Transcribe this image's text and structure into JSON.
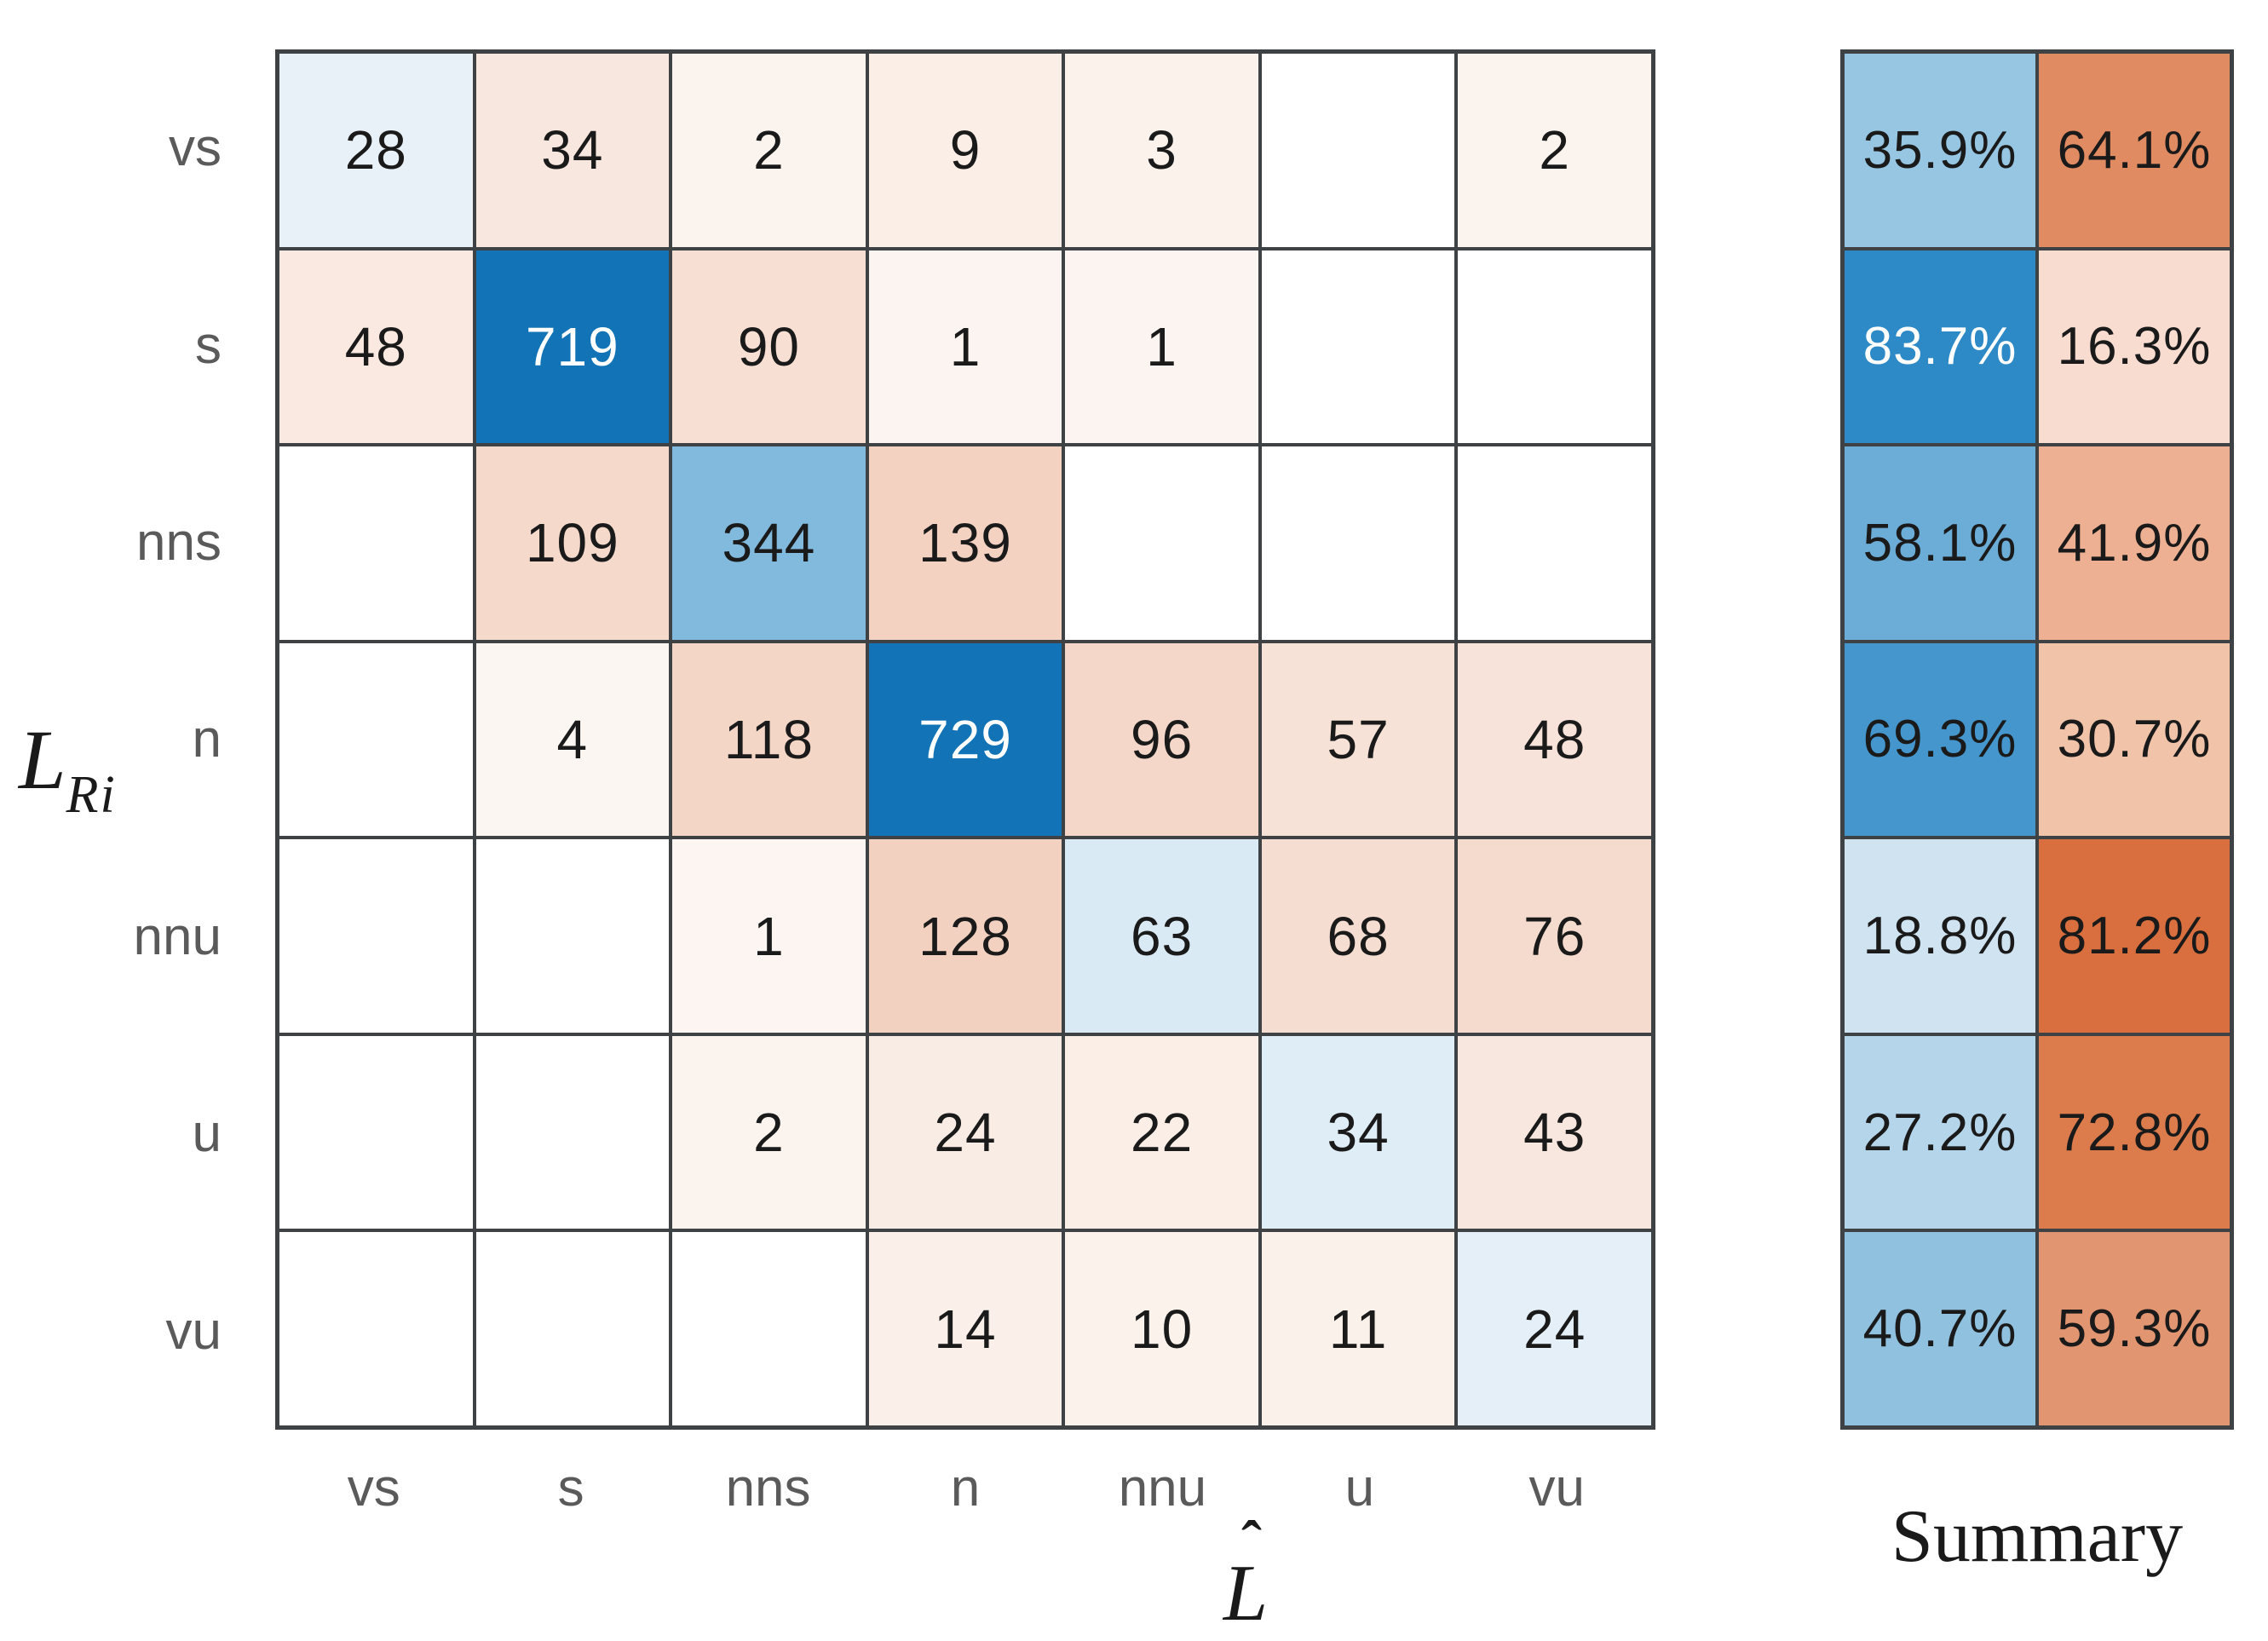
{
  "figure": {
    "ylabel_base": "L",
    "ylabel_subscript": "Ri",
    "xlabel_base": "L",
    "xlabel_hat": "ˆ"
  },
  "chart_data": {
    "type": "heatmap",
    "title": "",
    "xlabel": "L̂",
    "ylabel": "L_Ri",
    "colormap": "RdBu (blue = correct/agreement, red = disagreement)",
    "grid_color": "#3f4245",
    "tick_label_color": "#5a5a5a",
    "row_labels": [
      "vs",
      "s",
      "nns",
      "n",
      "nnu",
      "u",
      "vu"
    ],
    "col_labels": [
      "vs",
      "s",
      "nns",
      "n",
      "nnu",
      "u",
      "vu"
    ],
    "values": [
      [
        28,
        34,
        2,
        9,
        3,
        null,
        2
      ],
      [
        48,
        719,
        90,
        1,
        1,
        null,
        null
      ],
      [
        null,
        109,
        344,
        139,
        null,
        null,
        null
      ],
      [
        null,
        4,
        118,
        729,
        96,
        57,
        48
      ],
      [
        null,
        null,
        1,
        128,
        63,
        68,
        76
      ],
      [
        null,
        null,
        2,
        24,
        22,
        34,
        43
      ],
      [
        null,
        null,
        null,
        14,
        10,
        11,
        24
      ]
    ],
    "cell_colors": [
      [
        "#e9f1f8",
        "#f8e7de",
        "#fbf3ee",
        "#faeee7",
        "#fbf2ec",
        "#ffffff",
        "#fbf3ee"
      ],
      [
        "#f9e9e1",
        "#1274b6",
        "#f7dfd4",
        "#fcf4f0",
        "#fcf4f0",
        "#ffffff",
        "#ffffff"
      ],
      [
        "#ffffff",
        "#f5d9cb",
        "#82bade",
        "#f4d2c2",
        "#ffffff",
        "#ffffff",
        "#ffffff"
      ],
      [
        "#ffffff",
        "#fcf6f2",
        "#f4d6c7",
        "#1274b6",
        "#f5d7c9",
        "#f7e2d7",
        "#f7e3d9"
      ],
      [
        "#ffffff",
        "#ffffff",
        "#fcf5f1",
        "#f3d1c1",
        "#daeaf4",
        "#f6ddd1",
        "#f5dbce"
      ],
      [
        "#ffffff",
        "#ffffff",
        "#fbf3ee",
        "#f9ece4",
        "#faeee7",
        "#deedf6",
        "#f8e7de"
      ],
      [
        "#ffffff",
        "#ffffff",
        "#ffffff",
        "#faf0e9",
        "#fbf2ec",
        "#fbf1eb",
        "#e4eff7"
      ]
    ],
    "white_text_cells": [
      [
        1,
        1
      ],
      [
        3,
        3
      ]
    ],
    "summary": {
      "title": "Summary",
      "left_percent": [
        "35.9%",
        "83.7%",
        "58.1%",
        "69.3%",
        "18.8%",
        "27.2%",
        "40.7%"
      ],
      "right_percent": [
        "64.1%",
        "16.3%",
        "41.9%",
        "30.7%",
        "81.2%",
        "72.8%",
        "59.3%"
      ],
      "left_colors": [
        "#96c6e2",
        "#2d8ac6",
        "#6cadd7",
        "#4496cc",
        "#cfe3f1",
        "#b5d6ea",
        "#90c1df"
      ],
      "right_colors": [
        "#e08b62",
        "#f8dcd0",
        "#edb092",
        "#f1c3a9",
        "#d96f3e",
        "#dc7c4d",
        "#e29571"
      ],
      "white_text_left_rows": [
        1
      ]
    }
  }
}
